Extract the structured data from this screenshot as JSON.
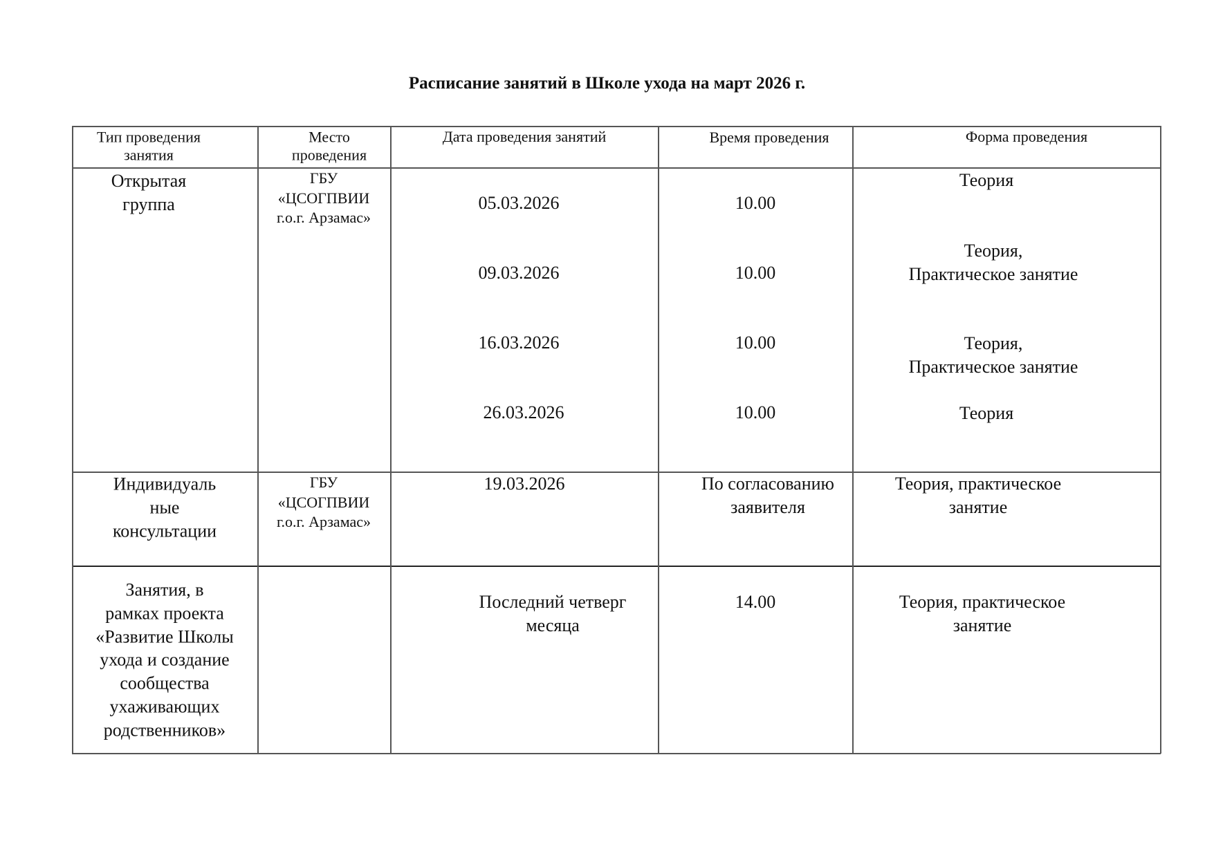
{
  "title": "Расписание занятий в Школе ухода на март 2026 г.",
  "headers": [
    "Тип проведения\nзанятия",
    "Место\nпроведения",
    "Дата проведения занятий",
    "Время проведения",
    "Форма проведения"
  ],
  "rows": [
    {
      "type": "Открытая\nгруппа",
      "place": "ГБУ\n«ЦСОГПВИИ\nг.о.г. Арзамас»",
      "sessions": [
        {
          "date": "05.03.2026",
          "time": "10.00",
          "form": "Теория"
        },
        {
          "date": "09.03.2026",
          "time": "10.00",
          "form": "Теория,\nПрактическое занятие"
        },
        {
          "date": "16.03.2026",
          "time": "10.00",
          "form": "Теория,\nПрактическое занятие"
        },
        {
          "date": "26.03.2026",
          "time": "10.00",
          "form": "Теория"
        }
      ]
    },
    {
      "type": "Индивидуаль\nные\nконсультации",
      "place": "ГБУ\n«ЦСОГПВИИ\nг.о.г. Арзамас»",
      "date": "19.03.2026",
      "time": "По согласованию\nзаявителя",
      "form": "Теория, практическое\nзанятие"
    },
    {
      "type": "Занятия, в\nрамках проекта\n«Развитие Школы\nухода и создание\nсообщества\nухаживающих\nродственников»",
      "place": "",
      "date": "Последний четверг\nмесяца",
      "time": "14.00",
      "form": "Теория, практическое\nзанятие"
    }
  ]
}
